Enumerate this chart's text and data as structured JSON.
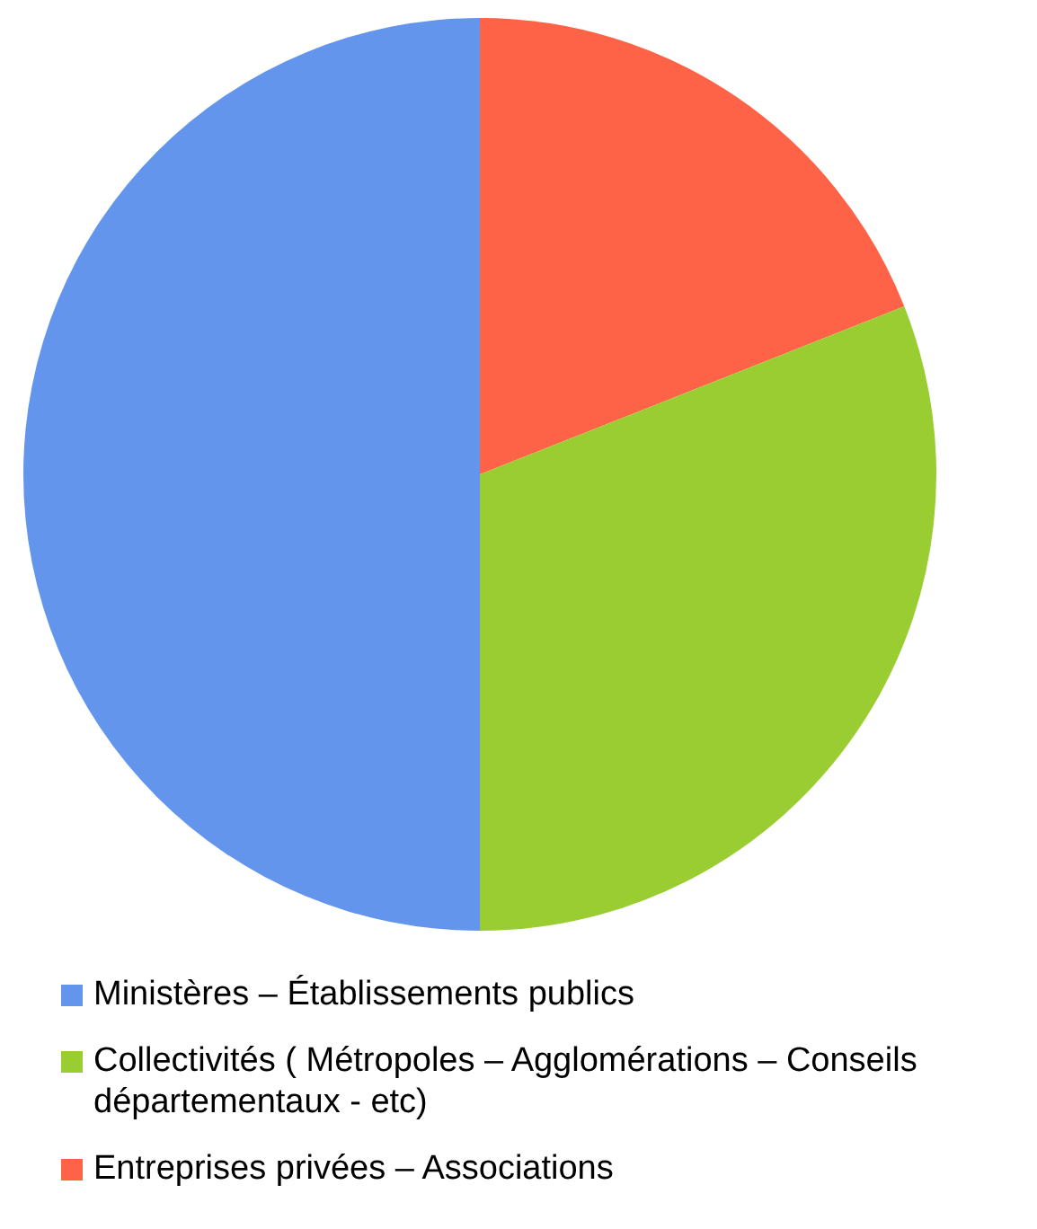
{
  "chart_data": {
    "type": "pie",
    "categories": [
      "Ministères – Établissements publics",
      "Collectivités ( Métropoles – Agglomérations – Conseils départementaux - etc)",
      "Entreprises privées – Associations"
    ],
    "values": [
      50,
      31,
      19
    ],
    "colors": [
      "#6495ed",
      "#9acd32",
      "#ff6347"
    ],
    "legend": "bottom"
  }
}
